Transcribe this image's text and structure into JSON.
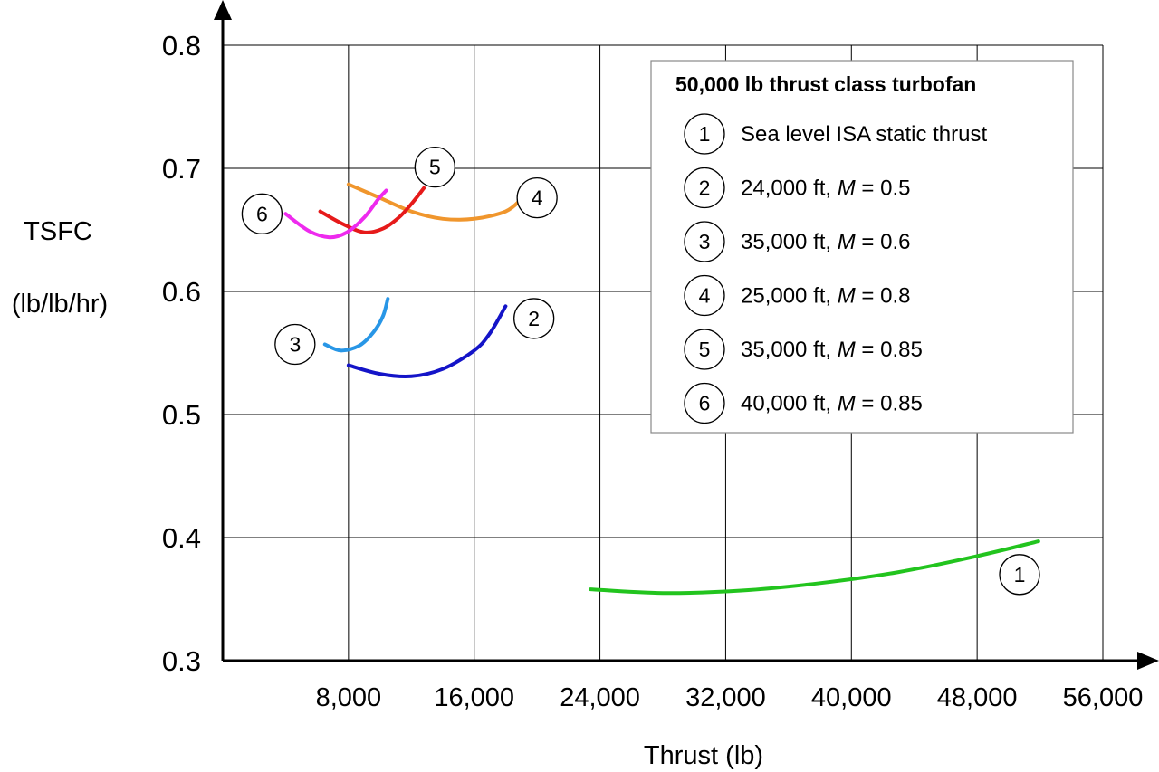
{
  "chart_data": {
    "type": "line",
    "xlabel": "Thrust (lb)",
    "ylabel_lines": [
      "TSFC",
      "(lb/lb/hr)"
    ],
    "xlim": [
      0,
      56000
    ],
    "ylim": [
      0.3,
      0.8
    ],
    "x_ticks": [
      8000,
      16000,
      24000,
      32000,
      40000,
      48000,
      56000
    ],
    "x_tick_labels": [
      "8,000",
      "16,000",
      "24,000",
      "32,000",
      "40,000",
      "48,000",
      "56,000"
    ],
    "y_ticks": [
      0.3,
      0.4,
      0.5,
      0.6,
      0.7,
      0.8
    ],
    "y_tick_labels": [
      "0.3",
      "0.4",
      "0.5",
      "0.6",
      "0.7",
      "0.8"
    ],
    "grid": true,
    "legend_position": "top-right",
    "legend": {
      "title": "50,000 lb thrust class turbofan",
      "entries": [
        {
          "num": "1",
          "pre": "Sea level ISA static thrust",
          "ital": "",
          "post": ""
        },
        {
          "num": "2",
          "pre": "24,000 ft, ",
          "ital": "M",
          "post": " = 0.5"
        },
        {
          "num": "3",
          "pre": "35,000 ft, ",
          "ital": "M",
          "post": " = 0.6"
        },
        {
          "num": "4",
          "pre": "25,000 ft, ",
          "ital": "M",
          "post": " = 0.8"
        },
        {
          "num": "5",
          "pre": "35,000 ft, ",
          "ital": "M",
          "post": " = 0.85"
        },
        {
          "num": "6",
          "pre": "40,000 ft, ",
          "ital": "M",
          "post": " = 0.85"
        }
      ]
    },
    "series": [
      {
        "id": "1",
        "color": "#22c41e",
        "points": [
          [
            23400,
            0.358
          ],
          [
            28000,
            0.355
          ],
          [
            33000,
            0.357
          ],
          [
            38000,
            0.363
          ],
          [
            43000,
            0.372
          ],
          [
            48000,
            0.385
          ],
          [
            51900,
            0.397
          ]
        ],
        "label_at": [
          50700,
          0.37
        ]
      },
      {
        "id": "2",
        "color": "#1414c8",
        "points": [
          [
            8000,
            0.54
          ],
          [
            10000,
            0.533
          ],
          [
            12000,
            0.531
          ],
          [
            14000,
            0.537
          ],
          [
            16000,
            0.552
          ],
          [
            17000,
            0.566
          ],
          [
            18000,
            0.588
          ]
        ],
        "label_at": [
          19800,
          0.578
        ]
      },
      {
        "id": "3",
        "color": "#2896e6",
        "points": [
          [
            6500,
            0.557
          ],
          [
            7500,
            0.552
          ],
          [
            8700,
            0.556
          ],
          [
            9600,
            0.567
          ],
          [
            10200,
            0.58
          ],
          [
            10500,
            0.594
          ]
        ],
        "label_at": [
          4600,
          0.557
        ]
      },
      {
        "id": "4",
        "color": "#f0962d",
        "points": [
          [
            8000,
            0.687
          ],
          [
            10000,
            0.676
          ],
          [
            12000,
            0.665
          ],
          [
            14000,
            0.659
          ],
          [
            16000,
            0.659
          ],
          [
            18000,
            0.665
          ],
          [
            19000,
            0.675
          ]
        ],
        "label_at": [
          20000,
          0.676
        ]
      },
      {
        "id": "5",
        "color": "#e61a1a",
        "points": [
          [
            6200,
            0.665
          ],
          [
            7600,
            0.655
          ],
          [
            9000,
            0.648
          ],
          [
            10200,
            0.651
          ],
          [
            11200,
            0.66
          ],
          [
            12000,
            0.671
          ],
          [
            12800,
            0.684
          ]
        ],
        "label_at": [
          13500,
          0.701
        ]
      },
      {
        "id": "6",
        "color": "#ee2aee",
        "points": [
          [
            4000,
            0.663
          ],
          [
            5500,
            0.649
          ],
          [
            6800,
            0.644
          ],
          [
            7900,
            0.648
          ],
          [
            9000,
            0.66
          ],
          [
            9900,
            0.675
          ],
          [
            10400,
            0.682
          ]
        ],
        "label_at": [
          2500,
          0.663
        ]
      }
    ]
  }
}
